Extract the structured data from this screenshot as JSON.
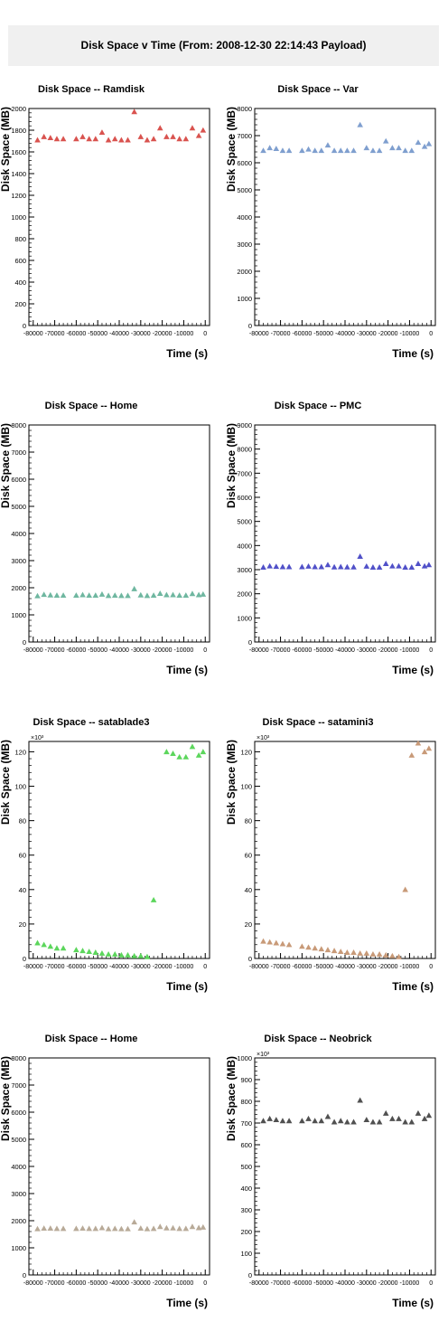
{
  "page": {
    "title": "Disk Space v Time (From: 2008-12-30 22:14:43 Payload)"
  },
  "chart_data": [
    {
      "type": "scatter",
      "title": "Disk Space -- Ramdisk",
      "xlabel": "Time (s)",
      "ylabel": "Disk Space (MB)",
      "xlim": [
        -82000,
        2000
      ],
      "ylim": [
        0,
        2000
      ],
      "xticks": [
        -80000,
        -70000,
        -60000,
        -50000,
        -40000,
        -30000,
        -20000,
        -10000,
        0
      ],
      "yticks": [
        0,
        200,
        400,
        600,
        800,
        1000,
        1200,
        1400,
        1600,
        1800,
        2000
      ],
      "exponent_label": "",
      "color": "#d9534f",
      "x": [
        -78000,
        -75000,
        -72000,
        -69000,
        -66000,
        -60000,
        -57000,
        -54000,
        -51000,
        -48000,
        -45000,
        -42000,
        -39000,
        -36000,
        -33000,
        -30000,
        -27000,
        -24000,
        -21000,
        -18000,
        -15000,
        -12000,
        -9000,
        -6000,
        -3000,
        -1000
      ],
      "y": [
        1710,
        1740,
        1730,
        1720,
        1720,
        1720,
        1740,
        1720,
        1720,
        1780,
        1710,
        1720,
        1710,
        1710,
        1970,
        1740,
        1710,
        1720,
        1820,
        1740,
        1740,
        1720,
        1720,
        1820,
        1750,
        1800
      ]
    },
    {
      "type": "scatter",
      "title": "Disk Space -- Var",
      "xlabel": "Time (s)",
      "ylabel": "Disk Space (MB)",
      "xlim": [
        -82000,
        2000
      ],
      "ylim": [
        0,
        8000
      ],
      "xticks": [
        -80000,
        -70000,
        -60000,
        -50000,
        -40000,
        -30000,
        -20000,
        -10000,
        0
      ],
      "yticks": [
        0,
        1000,
        2000,
        3000,
        4000,
        5000,
        6000,
        7000,
        8000
      ],
      "exponent_label": "",
      "color": "#7f9fcf",
      "x": [
        -78000,
        -75000,
        -72000,
        -69000,
        -66000,
        -60000,
        -57000,
        -54000,
        -51000,
        -48000,
        -45000,
        -42000,
        -39000,
        -36000,
        -33000,
        -30000,
        -27000,
        -24000,
        -21000,
        -18000,
        -15000,
        -12000,
        -9000,
        -6000,
        -3000,
        -1000
      ],
      "y": [
        6450,
        6550,
        6520,
        6450,
        6450,
        6450,
        6500,
        6450,
        6450,
        6650,
        6450,
        6450,
        6450,
        6450,
        7400,
        6550,
        6450,
        6450,
        6800,
        6550,
        6550,
        6450,
        6450,
        6750,
        6600,
        6700
      ]
    },
    {
      "type": "scatter",
      "title": "Disk Space -- Home",
      "xlabel": "Time (s)",
      "ylabel": "Disk Space (MB)",
      "xlim": [
        -82000,
        2000
      ],
      "ylim": [
        0,
        8000
      ],
      "xticks": [
        -80000,
        -70000,
        -60000,
        -50000,
        -40000,
        -30000,
        -20000,
        -10000,
        0
      ],
      "yticks": [
        0,
        1000,
        2000,
        3000,
        4000,
        5000,
        6000,
        7000,
        8000
      ],
      "exponent_label": "",
      "color": "#6fb7a0",
      "x": [
        -78000,
        -75000,
        -72000,
        -69000,
        -66000,
        -60000,
        -57000,
        -54000,
        -51000,
        -48000,
        -45000,
        -42000,
        -39000,
        -36000,
        -33000,
        -30000,
        -27000,
        -24000,
        -21000,
        -18000,
        -15000,
        -12000,
        -9000,
        -6000,
        -3000,
        -1000
      ],
      "y": [
        1700,
        1750,
        1730,
        1720,
        1720,
        1720,
        1740,
        1720,
        1720,
        1760,
        1710,
        1720,
        1710,
        1710,
        1960,
        1730,
        1710,
        1720,
        1790,
        1740,
        1740,
        1720,
        1720,
        1780,
        1740,
        1760
      ]
    },
    {
      "type": "scatter",
      "title": "Disk Space -- PMC",
      "xlabel": "Time (s)",
      "ylabel": "Disk Space (MB)",
      "xlim": [
        -82000,
        2000
      ],
      "ylim": [
        0,
        9000
      ],
      "xticks": [
        -80000,
        -70000,
        -60000,
        -50000,
        -40000,
        -30000,
        -20000,
        -10000,
        0
      ],
      "yticks": [
        0,
        1000,
        2000,
        3000,
        4000,
        5000,
        6000,
        7000,
        8000,
        9000
      ],
      "exponent_label": "",
      "color": "#5050c8",
      "x": [
        -78000,
        -75000,
        -72000,
        -69000,
        -66000,
        -60000,
        -57000,
        -54000,
        -51000,
        -48000,
        -45000,
        -42000,
        -39000,
        -36000,
        -33000,
        -30000,
        -27000,
        -24000,
        -21000,
        -18000,
        -15000,
        -12000,
        -9000,
        -6000,
        -3000,
        -1000
      ],
      "y": [
        3100,
        3150,
        3130,
        3120,
        3120,
        3120,
        3140,
        3120,
        3120,
        3200,
        3110,
        3120,
        3110,
        3110,
        3550,
        3140,
        3100,
        3100,
        3250,
        3150,
        3150,
        3100,
        3100,
        3250,
        3150,
        3200
      ]
    },
    {
      "type": "scatter",
      "title": "Disk Space -- satablade3",
      "xlabel": "Time (s)",
      "ylabel": "Disk Space (MB)",
      "xlim": [
        -82000,
        2000
      ],
      "ylim": [
        0,
        126
      ],
      "xticks": [
        -80000,
        -70000,
        -60000,
        -50000,
        -40000,
        -30000,
        -20000,
        -10000,
        0
      ],
      "yticks": [
        0,
        20,
        40,
        60,
        80,
        100,
        120
      ],
      "exponent_label": "×10³",
      "color": "#5cd65c",
      "x": [
        -78000,
        -75000,
        -72000,
        -69000,
        -66000,
        -60000,
        -57000,
        -54000,
        -51000,
        -48000,
        -45000,
        -42000,
        -39000,
        -36000,
        -33000,
        -30000,
        -27000,
        -24000,
        -18000,
        -15000,
        -12000,
        -9000,
        -6000,
        -3000,
        -1000
      ],
      "y": [
        9,
        8,
        7,
        6,
        6,
        5,
        4.5,
        4,
        3.5,
        3,
        2.5,
        2.5,
        2,
        2,
        1.5,
        1.5,
        1,
        34,
        120,
        119,
        117,
        117,
        123,
        118,
        120
      ]
    },
    {
      "type": "scatter",
      "title": "Disk Space -- satamini3",
      "xlabel": "Time (s)",
      "ylabel": "Disk Space (MB)",
      "xlim": [
        -82000,
        2000
      ],
      "ylim": [
        0,
        126
      ],
      "xticks": [
        -80000,
        -70000,
        -60000,
        -50000,
        -40000,
        -30000,
        -20000,
        -10000,
        0
      ],
      "yticks": [
        0,
        20,
        40,
        60,
        80,
        100,
        120
      ],
      "exponent_label": "×10³",
      "color": "#c89a78",
      "x": [
        -78000,
        -75000,
        -72000,
        -69000,
        -66000,
        -60000,
        -57000,
        -54000,
        -51000,
        -48000,
        -45000,
        -42000,
        -39000,
        -36000,
        -33000,
        -30000,
        -27000,
        -24000,
        -21000,
        -18000,
        -15000,
        -12000,
        -9000,
        -6000,
        -3000,
        -1000
      ],
      "y": [
        10,
        9.5,
        9,
        8.5,
        8,
        7,
        6.5,
        6,
        5.5,
        5,
        4.5,
        4,
        3.5,
        3.5,
        3,
        3,
        2.5,
        2.5,
        2,
        1.5,
        1,
        40,
        118,
        125,
        120,
        122
      ]
    },
    {
      "type": "scatter",
      "title": "Disk Space -- Home",
      "xlabel": "Time (s)",
      "ylabel": "Disk Space (MB)",
      "xlim": [
        -82000,
        2000
      ],
      "ylim": [
        0,
        8000
      ],
      "xticks": [
        -80000,
        -70000,
        -60000,
        -50000,
        -40000,
        -30000,
        -20000,
        -10000,
        0
      ],
      "yticks": [
        0,
        1000,
        2000,
        3000,
        4000,
        5000,
        6000,
        7000,
        8000
      ],
      "exponent_label": "",
      "color": "#b8aa98",
      "x": [
        -78000,
        -75000,
        -72000,
        -69000,
        -66000,
        -60000,
        -57000,
        -54000,
        -51000,
        -48000,
        -45000,
        -42000,
        -39000,
        -36000,
        -33000,
        -30000,
        -27000,
        -24000,
        -21000,
        -18000,
        -15000,
        -12000,
        -9000,
        -6000,
        -3000,
        -1000
      ],
      "y": [
        1700,
        1720,
        1720,
        1710,
        1710,
        1710,
        1720,
        1710,
        1710,
        1740,
        1700,
        1710,
        1700,
        1700,
        1950,
        1720,
        1700,
        1710,
        1780,
        1730,
        1730,
        1710,
        1710,
        1780,
        1740,
        1760
      ]
    },
    {
      "type": "scatter",
      "title": "Disk Space -- Neobrick",
      "xlabel": "Time (s)",
      "ylabel": "Disk Space (MB)",
      "xlim": [
        -82000,
        2000
      ],
      "ylim": [
        0,
        1000
      ],
      "xticks": [
        -80000,
        -70000,
        -60000,
        -50000,
        -40000,
        -30000,
        -20000,
        -10000,
        0
      ],
      "yticks": [
        0,
        100,
        200,
        300,
        400,
        500,
        600,
        700,
        800,
        900,
        1000
      ],
      "exponent_label": "×10³",
      "color": "#505050",
      "x": [
        -78000,
        -75000,
        -72000,
        -69000,
        -66000,
        -60000,
        -57000,
        -54000,
        -51000,
        -48000,
        -45000,
        -42000,
        -39000,
        -36000,
        -33000,
        -30000,
        -27000,
        -24000,
        -21000,
        -18000,
        -15000,
        -12000,
        -9000,
        -6000,
        -3000,
        -1000
      ],
      "y": [
        710,
        720,
        715,
        710,
        710,
        710,
        720,
        710,
        710,
        730,
        705,
        710,
        705,
        705,
        805,
        715,
        705,
        705,
        745,
        720,
        720,
        705,
        705,
        745,
        720,
        735
      ]
    }
  ]
}
